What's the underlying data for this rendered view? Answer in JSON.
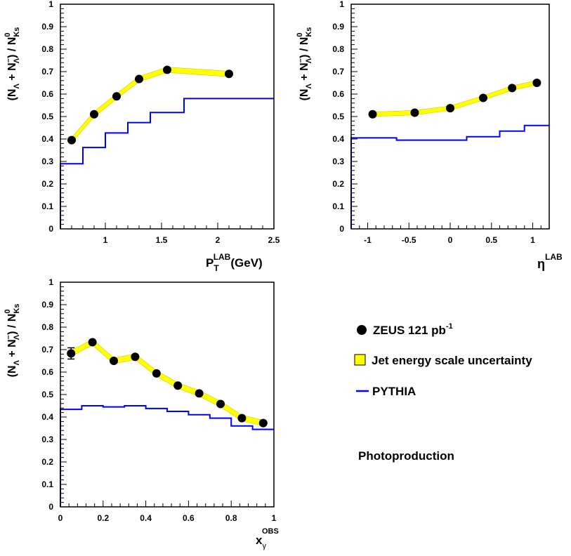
{
  "chart_data": [
    {
      "type": "line",
      "xlabel": {
        "main": "P",
        "sub": "T",
        "sup": "LAB",
        "unit": "(GeV)"
      },
      "ylabel": {
        "text": "(N",
        "sub1": "Λ",
        "plus": " + N",
        "sup2": "–",
        "sub2": "Λ",
        "rest": ") / N",
        "sub3": "Ks",
        "sup3": "0"
      },
      "xlim": [
        0.6,
        2.5
      ],
      "ylim": [
        0,
        1
      ],
      "xticks": [
        1,
        1.5,
        2,
        2.5
      ],
      "xtick_labels": [
        "1",
        "1.5",
        "2",
        "2.5"
      ],
      "yticks": [
        0,
        0.1,
        0.2,
        0.3,
        0.4,
        0.5,
        0.6,
        0.7,
        0.8,
        0.9,
        1
      ],
      "ytick_labels": [
        "0",
        "0.1",
        "0.2",
        "0.3",
        "0.4",
        "0.5",
        "0.6",
        "0.7",
        "0.8",
        "0.9",
        "1"
      ],
      "data": {
        "x": [
          0.7,
          0.9,
          1.1,
          1.3,
          1.55,
          2.1
        ],
        "y": [
          0.395,
          0.51,
          0.59,
          0.667,
          0.708,
          0.69
        ],
        "yerr": [
          0,
          0,
          0,
          0,
          0,
          0
        ]
      },
      "band": {
        "x": [
          0.7,
          0.9,
          1.1,
          1.3,
          1.55,
          2.1
        ],
        "y": [
          0.395,
          0.51,
          0.59,
          0.667,
          0.708,
          0.69
        ],
        "half_width": 0.012
      },
      "pythia": {
        "edges": [
          0.6,
          0.8,
          1.0,
          1.2,
          1.4,
          1.7,
          2.5
        ],
        "values": [
          0.29,
          0.362,
          0.427,
          0.473,
          0.518,
          0.58
        ]
      }
    },
    {
      "type": "line",
      "xlabel": {
        "main": "η",
        "sup": "LAB"
      },
      "ylabel": {
        "text": "(N",
        "sub1": "Λ",
        "plus": " + N",
        "sup2": "–",
        "sub2": "Λ",
        "rest": ") / N",
        "sub3": "Ks",
        "sup3": "0"
      },
      "xlim": [
        -1.2,
        1.2
      ],
      "ylim": [
        0,
        1
      ],
      "xticks": [
        -1,
        -0.5,
        0,
        0.5,
        1
      ],
      "xtick_labels": [
        "-1",
        "-0.5",
        "0",
        "0.5",
        "1"
      ],
      "yticks": [
        0,
        0.1,
        0.2,
        0.3,
        0.4,
        0.5,
        0.6,
        0.7,
        0.8,
        0.9,
        1
      ],
      "ytick_labels": [
        "0",
        "0.1",
        "0.2",
        "0.3",
        "0.4",
        "0.5",
        "0.6",
        "0.7",
        "0.8",
        "0.9",
        "1"
      ],
      "data": {
        "x": [
          -0.94,
          -0.43,
          0,
          0.4,
          0.75,
          1.05
        ],
        "y": [
          0.51,
          0.517,
          0.537,
          0.583,
          0.627,
          0.65
        ],
        "yerr": [
          0,
          0,
          0,
          0,
          0,
          0
        ]
      },
      "band": {
        "x": [
          -0.94,
          -0.43,
          0,
          0.4,
          0.75,
          1.05
        ],
        "y": [
          0.51,
          0.517,
          0.537,
          0.583,
          0.627,
          0.65
        ],
        "half_width": 0.01
      },
      "pythia": {
        "edges": [
          -1.2,
          -0.65,
          -0.2,
          0.2,
          0.6,
          0.9,
          1.2
        ],
        "values": [
          0.405,
          0.395,
          0.395,
          0.41,
          0.435,
          0.46
        ]
      }
    },
    {
      "type": "line",
      "xlabel": {
        "main": "x",
        "sub": "γ",
        "sup": "OBS"
      },
      "ylabel": {
        "text": "(N",
        "sub1": "Λ",
        "plus": " + N",
        "sup2": "–",
        "sub2": "Λ",
        "rest": ") / N",
        "sub3": "Ks",
        "sup3": "0"
      },
      "xlim": [
        0,
        1
      ],
      "ylim": [
        0,
        1
      ],
      "xticks": [
        0,
        0.2,
        0.4,
        0.6,
        0.8,
        1
      ],
      "xtick_labels": [
        "0",
        "0.2",
        "0.4",
        "0.6",
        "0.8",
        "1"
      ],
      "yticks": [
        0,
        0.1,
        0.2,
        0.3,
        0.4,
        0.5,
        0.6,
        0.7,
        0.8,
        0.9,
        1
      ],
      "ytick_labels": [
        "0",
        "0.1",
        "0.2",
        "0.3",
        "0.4",
        "0.5",
        "0.6",
        "0.7",
        "0.8",
        "0.9",
        "1"
      ],
      "data": {
        "x": [
          0.05,
          0.15,
          0.25,
          0.35,
          0.45,
          0.55,
          0.65,
          0.75,
          0.85,
          0.95
        ],
        "y": [
          0.683,
          0.733,
          0.65,
          0.668,
          0.594,
          0.54,
          0.505,
          0.458,
          0.395,
          0.373
        ],
        "yerr": [
          0.025,
          0,
          0,
          0,
          0,
          0,
          0,
          0,
          0,
          0
        ]
      },
      "band": {
        "x": [
          0.05,
          0.15,
          0.25,
          0.35,
          0.45,
          0.55,
          0.65,
          0.75,
          0.85,
          0.95
        ],
        "y": [
          0.683,
          0.733,
          0.65,
          0.668,
          0.594,
          0.54,
          0.505,
          0.458,
          0.395,
          0.373
        ],
        "half_width": 0.013
      },
      "pythia": {
        "edges": [
          0,
          0.1,
          0.2,
          0.3,
          0.4,
          0.5,
          0.6,
          0.7,
          0.8,
          0.9,
          1.0
        ],
        "values": [
          0.434,
          0.45,
          0.445,
          0.45,
          0.438,
          0.425,
          0.41,
          0.395,
          0.36,
          0.345
        ]
      }
    }
  ],
  "legend": {
    "items": [
      {
        "label": "ZEUS 121 pb",
        "sup": "-1"
      },
      {
        "label": "Jet energy scale uncertainty"
      },
      {
        "label": "PYTHIA"
      }
    ],
    "note": "Photoproduction"
  },
  "colors": {
    "data": "#000000",
    "band": "#ffff00",
    "band_edge": "#cccc00",
    "pythia": "#0000ff"
  }
}
